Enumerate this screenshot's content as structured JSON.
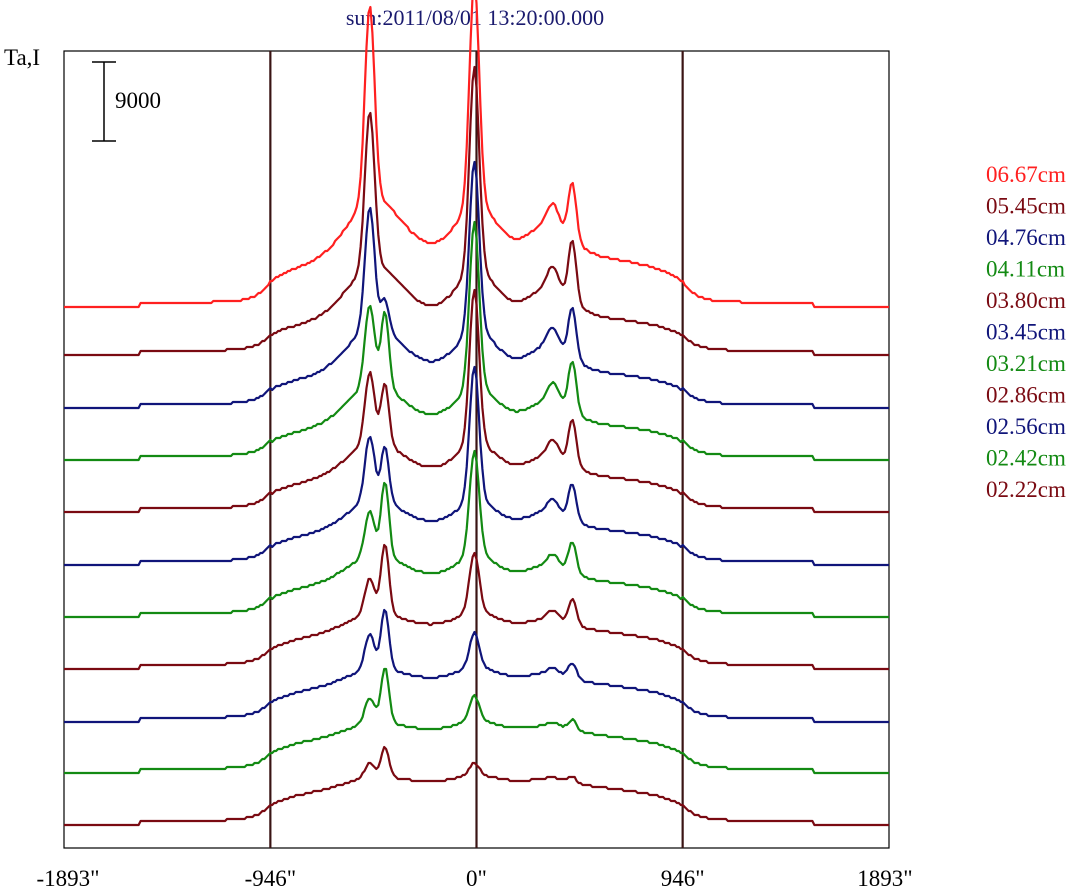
{
  "chart_data": {
    "type": "line",
    "title": "sun:2011/08/01 13:20:00.000",
    "ylabel": "Ta,I",
    "scale_bar_label": "9000",
    "xlim": [
      -1893,
      1893
    ],
    "x_ticks": [
      {
        "value": -1893,
        "label": "-1893\""
      },
      {
        "value": -946,
        "label": "-946\""
      },
      {
        "value": 0,
        "label": "0\""
      },
      {
        "value": 946,
        "label": "946\""
      },
      {
        "value": 1893,
        "label": "1893\""
      }
    ],
    "vertical_lines": [
      -946,
      0,
      946
    ],
    "legend_position": "right",
    "series": [
      {
        "name": "06.67cm",
        "color": "#ff2020",
        "baseline": 307,
        "envelope": 0.95,
        "step": 0.0,
        "bump": 1.0,
        "limb": 1.0,
        "pA": 195,
        "pA2": 0,
        "pB": 225,
        "pC": 55,
        "minorX": [
          -480,
          1
        ],
        "minorW": [
          0,
          1
        ]
      },
      {
        "name": "05.45cm",
        "color": "#7a0a12",
        "baseline": 355,
        "envelope": 0.9,
        "step": 0.0,
        "bump": 0.9,
        "limb": 0.8,
        "pA": 155,
        "pA2": 0,
        "pB": 205,
        "pC": 60,
        "minorX": [
          0,
          0
        ],
        "minorW": [
          0,
          0
        ]
      },
      {
        "name": "04.76cm",
        "color": "#10157a",
        "baseline": 408,
        "envelope": 0.85,
        "step": 0.0,
        "bump": 0.8,
        "limb": 0.8,
        "pA": 120,
        "pA2": 30,
        "pB": 170,
        "pC": 50,
        "minorX": [
          0,
          0
        ],
        "minorW": [
          0,
          0
        ]
      },
      {
        "name": "04.11cm",
        "color": "#138a13",
        "baseline": 460,
        "envelope": 0.85,
        "step": 0.0,
        "bump": 0.7,
        "limb": 0.8,
        "pA": 80,
        "pA2": 75,
        "pB": 165,
        "pC": 50,
        "minorX": [
          0,
          0
        ],
        "minorW": [
          0,
          0
        ]
      },
      {
        "name": "03.80cm",
        "color": "#7a0a12",
        "baseline": 512,
        "envelope": 0.85,
        "step": 0.0,
        "bump": 0.6,
        "limb": 0.8,
        "pA": 70,
        "pA2": 60,
        "pB": 155,
        "pC": 45,
        "minorX": [
          0,
          0
        ],
        "minorW": [
          0,
          0
        ]
      },
      {
        "name": "03.45cm",
        "color": "#10157a",
        "baseline": 565,
        "envelope": 0.85,
        "step": 0.0,
        "bump": 0.5,
        "limb": 0.8,
        "pA": 65,
        "pA2": 55,
        "pB": 135,
        "pC": 35,
        "minorX": [
          0,
          0
        ],
        "minorW": [
          0,
          0
        ]
      },
      {
        "name": "03.21cm",
        "color": "#138a13",
        "baseline": 617,
        "envelope": 0.85,
        "step": 0.0,
        "bump": 0.45,
        "limb": 0.8,
        "pA": 45,
        "pA2": 75,
        "pB": 105,
        "pC": 30,
        "minorX": [
          0,
          0
        ],
        "minorW": [
          0,
          0
        ]
      },
      {
        "name": "02.86cm",
        "color": "#7a0a12",
        "baseline": 669,
        "envelope": 0.9,
        "step": 0.0,
        "bump": 0.3,
        "limb": 0.8,
        "pA": 35,
        "pA2": 70,
        "pB": 60,
        "pC": 25,
        "minorX": [
          0,
          0
        ],
        "minorW": [
          0,
          0
        ]
      },
      {
        "name": "02.56cm",
        "color": "#10157a",
        "baseline": 722,
        "envelope": 0.9,
        "step": 0.0,
        "bump": 0.25,
        "limb": 0.8,
        "pA": 35,
        "pA2": 60,
        "pB": 35,
        "pC": 15,
        "minorX": [
          0,
          0
        ],
        "minorW": [
          0,
          0
        ]
      },
      {
        "name": "02.42cm",
        "color": "#138a13",
        "baseline": 773,
        "envelope": 0.9,
        "step": 0.0,
        "bump": 0.2,
        "limb": 0.8,
        "pA": 25,
        "pA2": 55,
        "pB": 25,
        "pC": 10,
        "minorX": [
          0,
          0
        ],
        "minorW": [
          0,
          0
        ]
      },
      {
        "name": "02.22cm",
        "color": "#7a0a12",
        "baseline": 825,
        "envelope": 0.9,
        "step": 0.0,
        "bump": 0.15,
        "limb": 0.8,
        "pA": 15,
        "pA2": 30,
        "pB": 12,
        "pC": 6,
        "minorX": [
          0,
          0
        ],
        "minorW": [
          0,
          0
        ]
      }
    ]
  }
}
